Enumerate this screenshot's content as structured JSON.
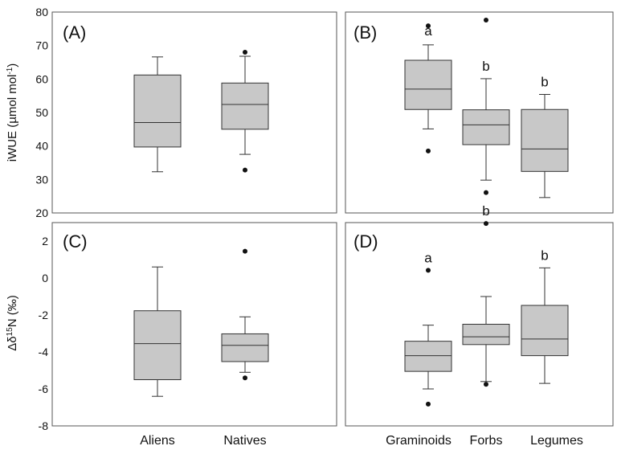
{
  "chart_data": [
    {
      "panel": "(A)",
      "type": "box",
      "ylabel": "iWUE (µmol mol-1)",
      "ylim": [
        20,
        80
      ],
      "yticks": [
        20,
        30,
        40,
        50,
        60,
        70,
        80
      ],
      "categories": [
        "Aliens",
        "Natives"
      ],
      "boxes": [
        {
          "whisker_low": 32.3,
          "q1": 39.7,
          "median": 47.0,
          "q3": 61.2,
          "whisker_high": 66.6,
          "outliers": [],
          "letter": ""
        },
        {
          "whisker_low": 37.5,
          "q1": 45.0,
          "median": 52.4,
          "q3": 58.8,
          "whisker_high": 66.8,
          "outliers": [
            68.0,
            32.8
          ],
          "letter": ""
        }
      ]
    },
    {
      "panel": "(B)",
      "type": "box",
      "ylim": [
        20,
        80
      ],
      "categories": [
        "Graminoids",
        "Forbs",
        "Legumes"
      ],
      "boxes": [
        {
          "whisker_low": 45.1,
          "q1": 50.9,
          "median": 57.0,
          "q3": 65.6,
          "whisker_high": 70.2,
          "outliers": [
            75.9,
            38.5
          ],
          "letter": "a"
        },
        {
          "whisker_low": 29.8,
          "q1": 40.4,
          "median": 46.3,
          "q3": 50.8,
          "whisker_high": 60.1,
          "outliers": [
            77.6,
            26.1
          ],
          "letter": "b"
        },
        {
          "whisker_low": 24.6,
          "q1": 32.4,
          "median": 39.1,
          "q3": 50.9,
          "whisker_high": 55.4,
          "outliers": [],
          "letter": "b"
        }
      ]
    },
    {
      "panel": "(C)",
      "type": "box",
      "ylabel": "Δδ15N (‰)",
      "ylim": [
        -8,
        3
      ],
      "yticks": [
        -8,
        -6,
        -4,
        -2,
        0,
        2
      ],
      "categories": [
        "Aliens",
        "Natives"
      ],
      "boxes": [
        {
          "whisker_low": -6.4,
          "q1": -5.5,
          "median": -3.55,
          "q3": -1.77,
          "whisker_high": 0.6,
          "outliers": [],
          "letter": ""
        },
        {
          "whisker_low": -5.1,
          "q1": -4.52,
          "median": -3.64,
          "q3": -3.02,
          "whisker_high": -2.1,
          "outliers": [
            1.45,
            -5.4
          ],
          "letter": ""
        }
      ]
    },
    {
      "panel": "(D)",
      "type": "box",
      "ylim": [
        -8,
        3
      ],
      "categories": [
        "Graminoids",
        "Forbs",
        "Legumes"
      ],
      "boxes": [
        {
          "whisker_low": -6.0,
          "q1": -5.05,
          "median": -4.2,
          "q3": -3.42,
          "whisker_high": -2.55,
          "outliers": [
            0.42,
            -6.82
          ],
          "letter": "a"
        },
        {
          "whisker_low": -5.6,
          "q1": -3.6,
          "median": -3.18,
          "q3": -2.5,
          "whisker_high": -1.0,
          "outliers": [
            2.95,
            -5.75
          ],
          "letter": "b"
        },
        {
          "whisker_low": -5.7,
          "q1": -4.2,
          "median": -3.3,
          "q3": -1.48,
          "whisker_high": 0.55,
          "outliers": [],
          "letter": "b"
        }
      ]
    }
  ],
  "colors": {
    "box_fill": "#c8c8c8",
    "stroke": "#333333",
    "frame": "#555555"
  }
}
